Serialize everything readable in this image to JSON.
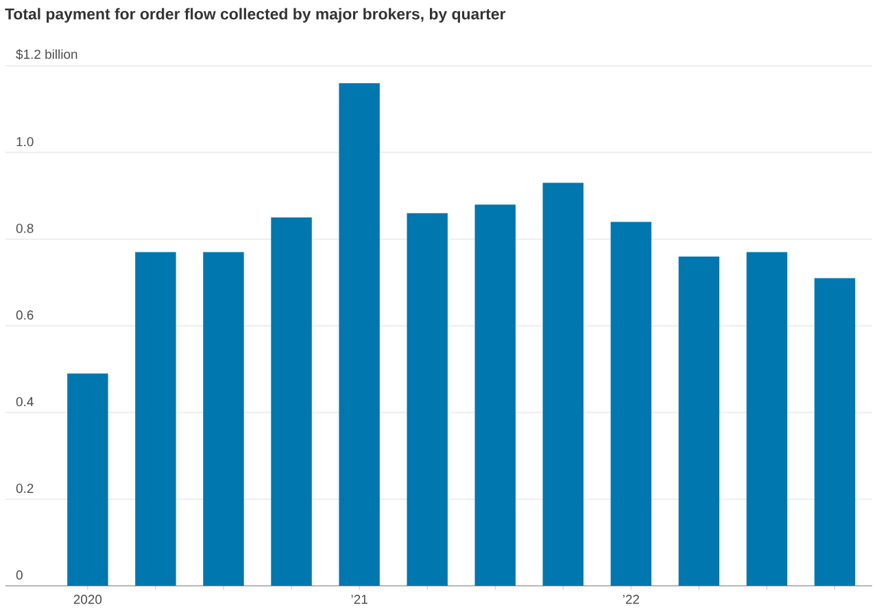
{
  "chart_data": {
    "type": "bar",
    "title": "Total payment for order flow collected by major brokers, by quarter",
    "categories": [
      "2020",
      null,
      null,
      null,
      "’21",
      null,
      null,
      null,
      "’22",
      null,
      null,
      null
    ],
    "values": [
      0.49,
      0.77,
      0.77,
      0.85,
      1.16,
      0.86,
      0.88,
      0.93,
      0.84,
      0.76,
      0.77,
      0.71
    ],
    "color": "#0077ae",
    "ylim": [
      0,
      1.2
    ],
    "yticks": [
      0,
      0.2,
      0.4,
      0.6,
      0.8,
      {
        "value": 1,
        "label": "1.0"
      },
      {
        "value": 1.2,
        "label": "$1.2 billion"
      }
    ],
    "grid": "y"
  }
}
